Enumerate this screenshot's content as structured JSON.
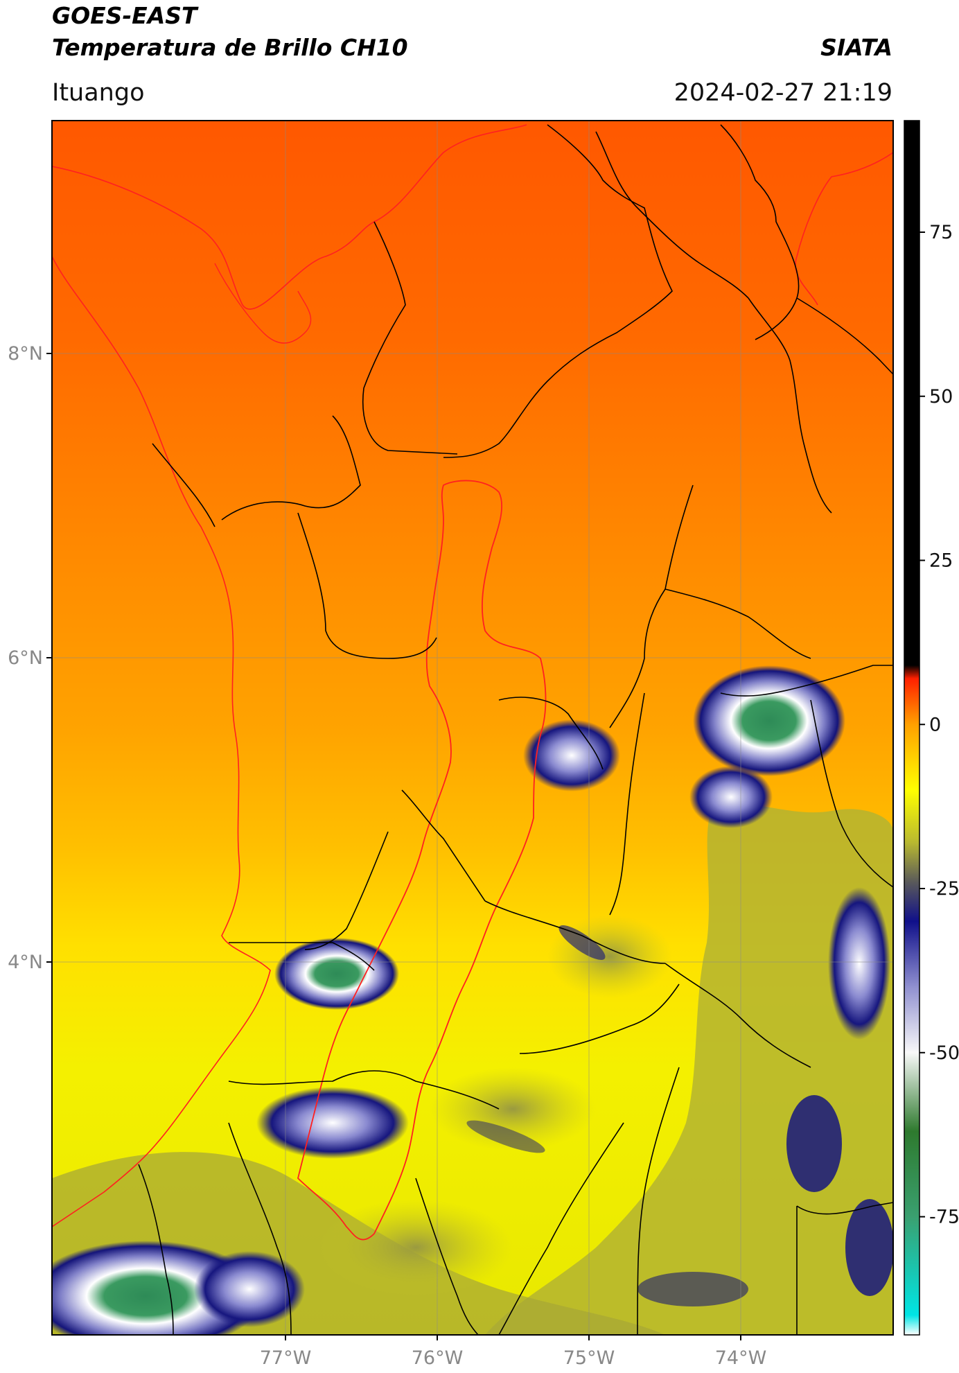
{
  "header": {
    "line1": "GOES-EAST",
    "line2": "Temperatura de Brillo CH10",
    "org": "SIATA",
    "place": "Ituango",
    "datetime": "2024-02-27 21:19"
  },
  "map": {
    "lat_labels": [
      "8°N",
      "6°N",
      "4°N"
    ],
    "lon_labels": [
      "77°W",
      "76°W",
      "75°W",
      "74°W"
    ],
    "colors": {
      "warm_top": "#ff5a00",
      "warm_mid": "#ffa500",
      "warm_low": "#ffdd00",
      "yellow": "#f0f000",
      "olive": "#a8a838",
      "navy": "#1a1a80",
      "white": "#ffffff",
      "green": "#2e8b57",
      "boundary": "#000000",
      "basin": "#ff0000"
    }
  },
  "colorbar": {
    "ticks": [
      "75",
      "50",
      "25",
      "0",
      "-25",
      "-50",
      "-75"
    ],
    "range": [
      -93,
      92
    ],
    "stops": [
      {
        "value": -93,
        "color": "#ffffff"
      },
      {
        "value": -90,
        "color": "#00e5e5"
      },
      {
        "value": -75,
        "color": "#3aa070"
      },
      {
        "value": -62,
        "color": "#2e7a2e"
      },
      {
        "value": -50,
        "color": "#f8f8f8"
      },
      {
        "value": -40,
        "color": "#9090d0"
      },
      {
        "value": -30,
        "color": "#10108a"
      },
      {
        "value": -24,
        "color": "#5a5a5a"
      },
      {
        "value": -18,
        "color": "#b8b830"
      },
      {
        "value": -10,
        "color": "#ffff00"
      },
      {
        "value": 0,
        "color": "#ffa000"
      },
      {
        "value": 7,
        "color": "#ff2000"
      },
      {
        "value": 9,
        "color": "#000000"
      },
      {
        "value": 92,
        "color": "#000000"
      }
    ]
  }
}
